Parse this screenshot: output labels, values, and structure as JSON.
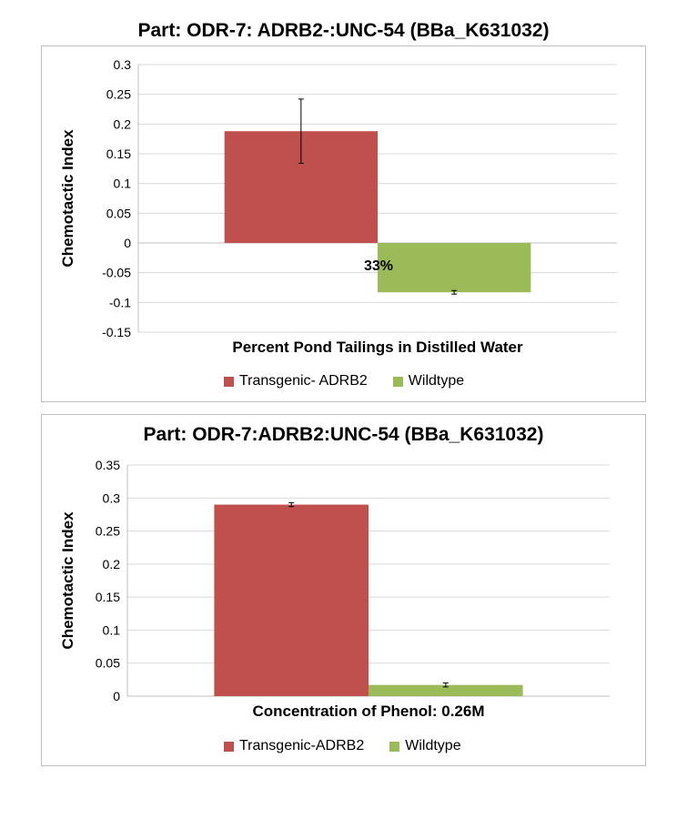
{
  "chart_data": [
    {
      "type": "bar",
      "title": "Part: ODR-7: ADRB2-:UNC-54 (BBa_K631032)",
      "xlabel": "Percent Pond Tailings in Distilled Water",
      "ylabel": "Chemotactic Index",
      "categories": [
        "33%"
      ],
      "ylim": [
        -0.15,
        0.3
      ],
      "yticks": [
        "0.3",
        "0.25",
        "0.2",
        "0.15",
        "0.1",
        "0.05",
        "0",
        "-0.05",
        "-0.1",
        "-0.15"
      ],
      "grid": true,
      "legend": "bottom",
      "series": [
        {
          "name": "Transgenic- ADRB2",
          "values": [
            0.188
          ],
          "error": [
            0.054
          ],
          "color": "#C0504D"
        },
        {
          "name": "Wildtype",
          "values": [
            -0.083
          ],
          "error": [
            0.003
          ],
          "color": "#9BBB59"
        }
      ]
    },
    {
      "type": "bar",
      "title": "Part: ODR-7:ADRB2:UNC-54 (BBa_K631032)",
      "xlabel": "Concentration of Phenol: 0.26M",
      "ylabel": "Chemotactic Index",
      "categories": [
        ""
      ],
      "ylim": [
        0,
        0.35
      ],
      "yticks": [
        "0.35",
        "0.3",
        "0.25",
        "0.2",
        "0.15",
        "0.1",
        "0.05",
        "0"
      ],
      "grid": true,
      "legend": "bottom",
      "series": [
        {
          "name": "Transgenic-ADRB2",
          "values": [
            0.29
          ],
          "error": [
            0.003
          ],
          "color": "#C0504D"
        },
        {
          "name": "Wildtype",
          "values": [
            0.017
          ],
          "error": [
            0.003
          ],
          "color": "#9BBB59"
        }
      ]
    }
  ]
}
